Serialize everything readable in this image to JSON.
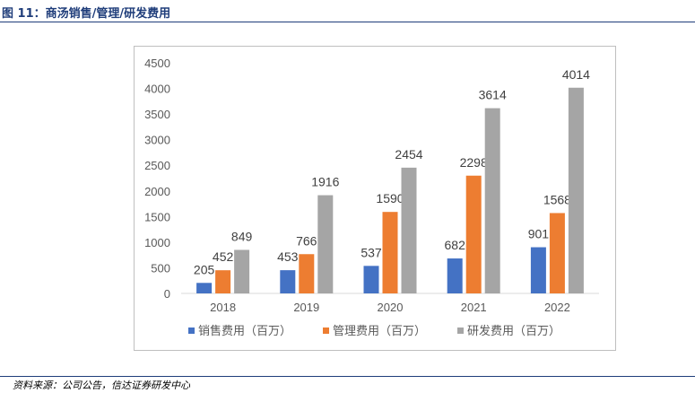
{
  "figure": {
    "title": "图 11：商汤销售/管理/研发费用",
    "source": "资料来源：公司公告，信达证券研发中心"
  },
  "chart_data": {
    "type": "bar",
    "title": "",
    "xlabel": "",
    "ylabel": "",
    "categories": [
      "2018",
      "2019",
      "2020",
      "2021",
      "2022"
    ],
    "ylim": [
      0,
      4500
    ],
    "yticks": [
      0,
      500,
      1000,
      1500,
      2000,
      2500,
      3000,
      3500,
      4000,
      4500
    ],
    "grid": false,
    "legend_position": "bottom",
    "series": [
      {
        "name": "销售费用（百万）",
        "color": "#4472c4",
        "values": [
          205,
          453,
          537,
          682,
          901
        ]
      },
      {
        "name": "管理费用（百万）",
        "color": "#ed7d31",
        "values": [
          452,
          766,
          1590,
          2298,
          1568
        ]
      },
      {
        "name": "研发费用（百万）",
        "color": "#a5a5a5",
        "values": [
          849,
          1916,
          2454,
          3614,
          4014
        ]
      }
    ]
  }
}
